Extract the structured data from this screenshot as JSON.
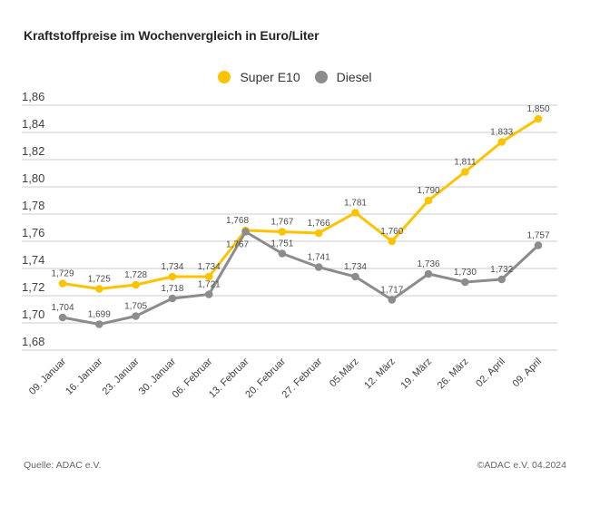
{
  "title": "Kraftstoffpreise im Wochenvergleich in Euro/Liter",
  "legend": {
    "items": [
      {
        "label": "Super E10",
        "color": "#FCC300"
      },
      {
        "label": "Diesel",
        "color": "#8C8C8C"
      }
    ]
  },
  "footer": {
    "source": "Quelle: ADAC e.V.",
    "copyright": "©ADAC e.V. 04.2024"
  },
  "colors": {
    "super_e10": "#FCC300",
    "diesel": "#8C8C8C",
    "gridline": "#cccccc",
    "axis_text": "#404040",
    "data_label_text": "#4d4d4d"
  },
  "chart_data": {
    "type": "line",
    "title": "Kraftstoffpreise im Wochenvergleich in Euro/Liter",
    "xlabel": "",
    "ylabel": "Euro/Liter",
    "grid": true,
    "legend_position": "top-center",
    "ylim": [
      1.68,
      1.86
    ],
    "ytick_step": 0.02,
    "yticks": [
      "1,86",
      "1,84",
      "1,82",
      "1,80",
      "1,78",
      "1,76",
      "1,74",
      "1,72",
      "1,70",
      "1,68"
    ],
    "categories": [
      "09. Januar",
      "16. Januar",
      "23. Januar",
      "30. Januar",
      "06. Februar",
      "13. Februar",
      "20. Februar",
      "27. Februar",
      "05.März",
      "12. März",
      "19. März",
      "26. März",
      "02. April",
      "09. April"
    ],
    "series": [
      {
        "name": "Super E10",
        "color": "#FCC300",
        "values": [
          1.729,
          1.725,
          1.728,
          1.734,
          1.734,
          1.768,
          1.767,
          1.766,
          1.781,
          1.76,
          1.79,
          1.811,
          1.833,
          1.85
        ],
        "labels": [
          "1,729",
          "1,725",
          "1,728",
          "1,734",
          "1,734",
          "1,768",
          "1,767",
          "1,766",
          "1,781",
          "1,760",
          "1,790",
          "1,811",
          "1,833",
          "1,850"
        ]
      },
      {
        "name": "Diesel",
        "color": "#8C8C8C",
        "values": [
          1.704,
          1.699,
          1.705,
          1.718,
          1.721,
          1.767,
          1.751,
          1.741,
          1.734,
          1.717,
          1.736,
          1.73,
          1.732,
          1.757
        ],
        "labels": [
          "1,704",
          "1,699",
          "1,705",
          "1,718",
          "1,721",
          "1,767",
          "1,751",
          "1,741",
          "1,734",
          "1,717",
          "1,736",
          "1,730",
          "1,732",
          "1,757"
        ]
      }
    ]
  }
}
